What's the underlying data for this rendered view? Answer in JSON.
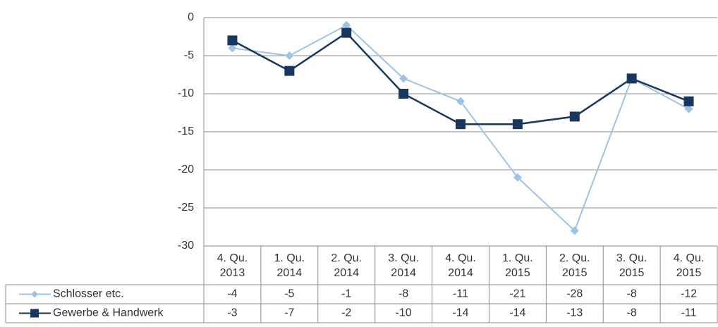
{
  "chart_data": {
    "type": "line",
    "categories": [
      "4. Qu. 2013",
      "1. Qu. 2014",
      "2. Qu. 2014",
      "3. Qu. 2014",
      "4. Qu. 2014",
      "1. Qu. 2015",
      "2. Qu. 2015",
      "3. Qu. 2015",
      "4. Qu. 2015"
    ],
    "series": [
      {
        "name": "Schlosser etc.",
        "color": "#9dc3e6",
        "marker": "diamond",
        "values": [
          -4,
          -5,
          -1,
          -8,
          -11,
          -21,
          -28,
          -8,
          -12
        ]
      },
      {
        "name": "Gewerbe & Handwerk",
        "color": "#17375e",
        "marker": "square",
        "values": [
          -3,
          -7,
          -2,
          -10,
          -14,
          -14,
          -13,
          -8,
          -11
        ]
      }
    ],
    "ylim": [
      -30,
      0
    ],
    "yticks": [
      -30,
      -25,
      -20,
      -15,
      -10,
      -5,
      0
    ],
    "grid": true
  }
}
